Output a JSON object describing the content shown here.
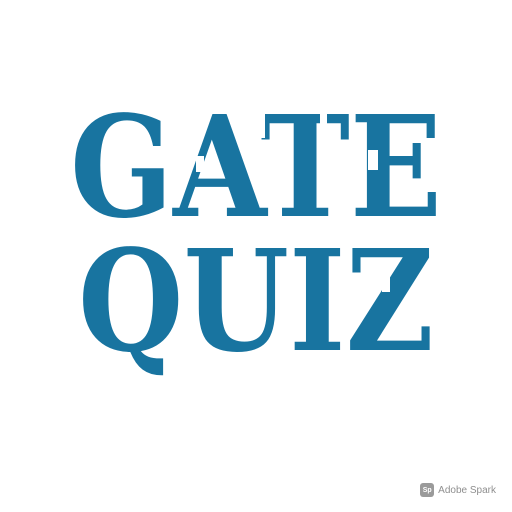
{
  "title": {
    "line1": "GATE",
    "line2": "QUIZ",
    "color": "#1874a0"
  },
  "watermark": {
    "logo_text": "Sp",
    "label": "Adobe Spark",
    "color": "#8f8f8f"
  },
  "background_color": "#ffffff"
}
